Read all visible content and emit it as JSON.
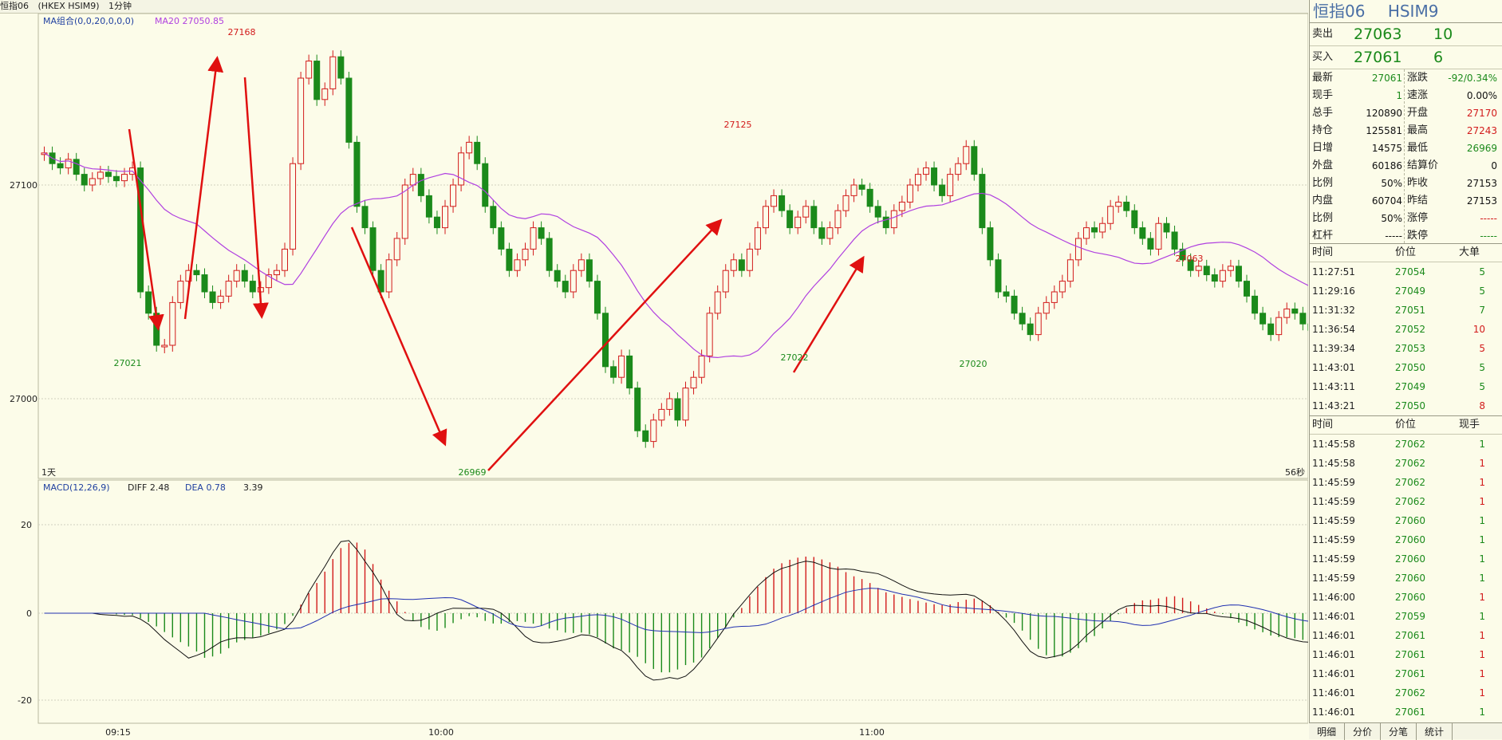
{
  "toolbar": {
    "symbol_label": "恒指06",
    "code": "(HKEX HSIM9)",
    "period": "1分钟"
  },
  "main_chart": {
    "ma_label": "MA组合(0,0,20,0,0,0)",
    "ma20_label": "MA20 27050.85",
    "y_ticks": [
      "27100",
      "27000"
    ],
    "x_ticks": [
      "09:15",
      "10:00",
      "11:00"
    ],
    "corner_left": "1天",
    "corner_right": "56秒",
    "peaks": [
      {
        "text": "27168",
        "color": "red"
      },
      {
        "text": "27125",
        "color": "red"
      },
      {
        "text": "27063",
        "color": "red"
      },
      {
        "text": "27021",
        "color": "green"
      },
      {
        "text": "26969",
        "color": "green"
      },
      {
        "text": "27022",
        "color": "green"
      },
      {
        "text": "27020",
        "color": "green"
      }
    ]
  },
  "macd": {
    "label": "MACD(12,26,9)",
    "diff": "DIFF 2.48",
    "dea": "DEA 0.78",
    "macd": "3.39",
    "y_ticks": [
      "20",
      "0",
      "-20"
    ]
  },
  "panel": {
    "title": "恒指06",
    "code": "HSIM9",
    "sell": {
      "label": "卖出",
      "price": "27063",
      "vol": "10"
    },
    "buy": {
      "label": "买入",
      "price": "27061",
      "vol": "6"
    },
    "left_stats": [
      {
        "k": "最新",
        "v": "27061",
        "c": "grn"
      },
      {
        "k": "现手",
        "v": "1",
        "c": "grn"
      },
      {
        "k": "总手",
        "v": "120890",
        "c": "blk"
      },
      {
        "k": "持仓",
        "v": "125581",
        "c": "blk"
      },
      {
        "k": "日增",
        "v": "14575",
        "c": "blk"
      },
      {
        "k": "外盘",
        "v": "60186",
        "c": "blk"
      },
      {
        "k": "比例",
        "v": "50%",
        "c": "blk"
      },
      {
        "k": "内盘",
        "v": "60704",
        "c": "blk"
      },
      {
        "k": "比例",
        "v": "50%",
        "c": "blk"
      },
      {
        "k": "杠杆",
        "v": "-----",
        "c": "blk"
      }
    ],
    "right_stats": [
      {
        "k": "涨跌",
        "v": "-92/0.34%",
        "c": "grn"
      },
      {
        "k": "速涨",
        "v": "0.00%",
        "c": "blk"
      },
      {
        "k": "开盘",
        "v": "27170",
        "c": "red"
      },
      {
        "k": "最高",
        "v": "27243",
        "c": "red"
      },
      {
        "k": "最低",
        "v": "26969",
        "c": "grn"
      },
      {
        "k": "结算价",
        "v": "0",
        "c": "blk"
      },
      {
        "k": "昨收",
        "v": "27153",
        "c": "blk"
      },
      {
        "k": "昨结",
        "v": "27153",
        "c": "blk"
      },
      {
        "k": "涨停",
        "v": "-----",
        "c": "red"
      },
      {
        "k": "跌停",
        "v": "-----",
        "c": "grn"
      }
    ],
    "big_header": {
      "time": "时间",
      "price": "价位",
      "vol": "大单"
    },
    "big_trades": [
      {
        "time": "11:27:51",
        "price": "27054",
        "vol": "5"
      },
      {
        "time": "11:29:16",
        "price": "27049",
        "vol": "5"
      },
      {
        "time": "11:31:32",
        "price": "27051",
        "vol": "7"
      },
      {
        "time": "11:36:54",
        "price": "27052",
        "vol": "10",
        "vc": "red"
      },
      {
        "time": "11:39:34",
        "price": "27053",
        "vol": "5",
        "vc": "red"
      },
      {
        "time": "11:43:01",
        "price": "27050",
        "vol": "5"
      },
      {
        "time": "11:43:11",
        "price": "27049",
        "vol": "5"
      },
      {
        "time": "11:43:21",
        "price": "27050",
        "vol": "8",
        "vc": "red"
      }
    ],
    "tick_header": {
      "time": "时间",
      "price": "价位",
      "vol": "现手"
    },
    "ticks": [
      {
        "time": "11:45:58",
        "price": "27062",
        "vol": "1"
      },
      {
        "time": "11:45:58",
        "price": "27062",
        "vol": "1",
        "vc": "red"
      },
      {
        "time": "11:45:59",
        "price": "27062",
        "vol": "1",
        "vc": "red"
      },
      {
        "time": "11:45:59",
        "price": "27062",
        "vol": "1",
        "vc": "red"
      },
      {
        "time": "11:45:59",
        "price": "27060",
        "vol": "1"
      },
      {
        "time": "11:45:59",
        "price": "27060",
        "vol": "1"
      },
      {
        "time": "11:45:59",
        "price": "27060",
        "vol": "1"
      },
      {
        "time": "11:45:59",
        "price": "27060",
        "vol": "1"
      },
      {
        "time": "11:46:00",
        "price": "27060",
        "vol": "1",
        "vc": "red"
      },
      {
        "time": "11:46:01",
        "price": "27059",
        "vol": "1"
      },
      {
        "time": "11:46:01",
        "price": "27061",
        "vol": "1",
        "vc": "red"
      },
      {
        "time": "11:46:01",
        "price": "27061",
        "vol": "1",
        "vc": "red"
      },
      {
        "time": "11:46:01",
        "price": "27061",
        "vol": "1",
        "vc": "red"
      },
      {
        "time": "11:46:01",
        "price": "27062",
        "vol": "1",
        "vc": "red"
      },
      {
        "time": "11:46:01",
        "price": "27061",
        "vol": "1"
      }
    ],
    "tabs": [
      "明细",
      "分价",
      "分笔",
      "统计"
    ]
  },
  "colors": {
    "up": "#d21b1b",
    "down": "#1b8a1b",
    "ma": "#b040e0",
    "bg": "#fcfce9",
    "grid": "#d0d0c0",
    "arrow": "#e01010"
  }
}
